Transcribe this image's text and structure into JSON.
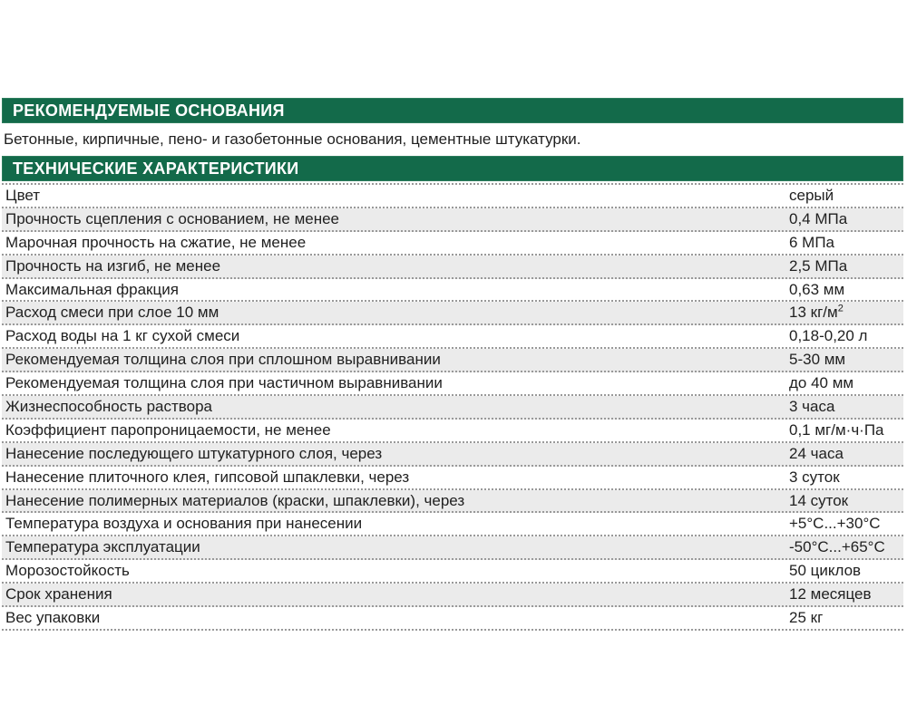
{
  "colors": {
    "header_green": "#136a4a",
    "header_green_border": "#2d7d5d",
    "header_text": "#ffffff",
    "row_alt_gray": "#ebebeb",
    "divider_gray": "#999999",
    "body_text": "#212121"
  },
  "sections": {
    "recommended_bases": {
      "title": "РЕКОМЕНДУЕМЫЕ ОСНОВАНИЯ",
      "body": "Бетонные, кирпичные, пено- и газобетонные основания, цементные штукатурки."
    },
    "technical": {
      "title": "ТЕХНИЧЕСКИЕ ХАРАКТЕРИСТИКИ"
    }
  },
  "table": {
    "rows": [
      {
        "label": "Цвет",
        "value": "серый",
        "value_sup": ""
      },
      {
        "label": "Прочность сцепления с основанием, не менее",
        "value": "0,4 МПа",
        "value_sup": ""
      },
      {
        "label": "Марочная прочность на сжатие, не менее",
        "value": "6 МПа",
        "value_sup": ""
      },
      {
        "label": "Прочность на изгиб, не менее",
        "value": "2,5 МПа",
        "value_sup": ""
      },
      {
        "label": "Максимальная фракция",
        "value": "0,63 мм",
        "value_sup": ""
      },
      {
        "label": "Расход смеси при слое 10 мм",
        "value": "13 кг/м",
        "value_sup": "2"
      },
      {
        "label": "Расход воды на 1 кг сухой смеси",
        "value": "0,18-0,20 л",
        "value_sup": ""
      },
      {
        "label": "Рекомендуемая толщина слоя при сплошном выравнивании",
        "value": "5-30 мм",
        "value_sup": ""
      },
      {
        "label": "Рекомендуемая толщина слоя при частичном выравнивании",
        "value": "до 40 мм",
        "value_sup": ""
      },
      {
        "label": "Жизнеспособность раствора",
        "value": "3 часа",
        "value_sup": ""
      },
      {
        "label": "Коэффициент паропроницаемости, не менее",
        "value": "0,1 мг/м·ч·Па",
        "value_sup": ""
      },
      {
        "label": "Нанесение последующего штукатурного слоя, через",
        "value": "24 часа",
        "value_sup": ""
      },
      {
        "label": "Нанесение плиточного клея, гипсовой шпаклевки, через",
        "value": "3 суток",
        "value_sup": ""
      },
      {
        "label": "Нанесение полимерных материалов (краски, шпаклевки), через",
        "value": "14 суток",
        "value_sup": ""
      },
      {
        "label": "Температура воздуха и основания при нанесении",
        "value": "+5°С...+30°С",
        "value_sup": ""
      },
      {
        "label": "Температура эксплуатации",
        "value": "-50°С...+65°С",
        "value_sup": ""
      },
      {
        "label": "Морозостойкость",
        "value": "50 циклов",
        "value_sup": ""
      },
      {
        "label": "Срок хранения",
        "value": "12 месяцев",
        "value_sup": ""
      },
      {
        "label": "Вес упаковки",
        "value": "25 кг",
        "value_sup": ""
      }
    ]
  }
}
